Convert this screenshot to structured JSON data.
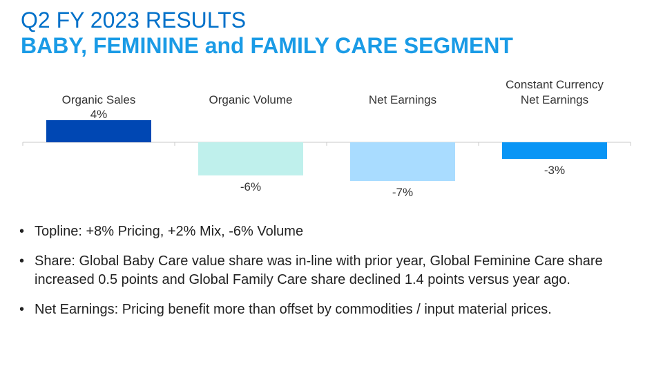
{
  "slide": {
    "title_line1": "Q2 FY 2023 RESULTS",
    "title_line2": "BABY, FEMININE and FAMILY CARE SEGMENT"
  },
  "chart_data": {
    "type": "bar",
    "categories": [
      [
        "Organic Sales"
      ],
      [
        "Organic Volume"
      ],
      [
        "Net Earnings"
      ],
      [
        "Constant Currency",
        "Net Earnings"
      ]
    ],
    "values": [
      4,
      -6,
      -7,
      -3
    ],
    "value_labels": [
      "4%",
      "-6%",
      "-7%",
      "-3%"
    ],
    "colors": [
      "#0047b3",
      "#bff0ec",
      "#a9dcff",
      "#0a95f5"
    ],
    "ylim": [
      -8,
      5
    ],
    "grid": false
  },
  "bullets": [
    {
      "marker": "•",
      "text": "Topline: +8% Pricing, +2% Mix, -6% Volume"
    },
    {
      "marker": "•",
      "text": "Share: Global Baby Care value share was in-line with prior year, Global Feminine Care share increased 0.5 points and Global Family Care share declined 1.4 points versus year ago."
    },
    {
      "marker": "•",
      "text": "Net Earnings: Pricing benefit more than offset by commodities / input material prices."
    }
  ]
}
